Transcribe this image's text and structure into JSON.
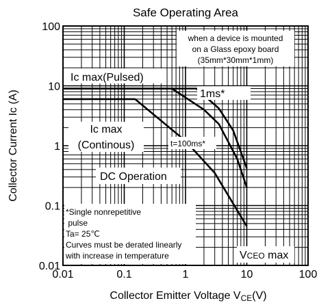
{
  "chart_data": {
    "type": "line",
    "title": "Safe Operating Area",
    "xlabel": "Collector Emitter Voltage V",
    "xlabel_sub": "CE",
    "xlabel_unit": "(V)",
    "ylabel": "Collector  Current  Ic (A)",
    "x_scale": "log",
    "y_scale": "log",
    "xlim": [
      0.01,
      100
    ],
    "ylim": [
      0.01,
      100
    ],
    "grid": true,
    "x_ticks": [
      {
        "v": 0.01,
        "label": "0.01"
      },
      {
        "v": 0.1,
        "label": "0.1"
      },
      {
        "v": 1,
        "label": "1"
      },
      {
        "v": 10,
        "label": "10"
      },
      {
        "v": 100,
        "label": "100"
      }
    ],
    "y_ticks": [
      {
        "v": 0.01,
        "label": "0.01"
      },
      {
        "v": 0.1,
        "label": "0.1"
      },
      {
        "v": 1,
        "label": "1"
      },
      {
        "v": 10,
        "label": "10"
      },
      {
        "v": 100,
        "label": "100"
      }
    ],
    "series": [
      {
        "points": [
          [
            0.01,
            9
          ],
          [
            1.5,
            9
          ],
          [
            3.5,
            4.2
          ],
          [
            6,
            1.8
          ],
          [
            10,
            0.42
          ]
        ]
      },
      {
        "points": [
          [
            0.01,
            9
          ],
          [
            0.6,
            9
          ],
          [
            2,
            4
          ],
          [
            3.5,
            2.3
          ],
          [
            7,
            0.6
          ],
          [
            10,
            0.2
          ]
        ]
      },
      {
        "points": [
          [
            0.01,
            6
          ],
          [
            0.15,
            6
          ],
          [
            1,
            1.2
          ],
          [
            3,
            0.35
          ],
          [
            10,
            0.045
          ]
        ]
      }
    ],
    "annotations": {
      "mount_note": [
        "when a device is mounted",
        "on a Glass epoxy board",
        "(35mm*30mm*1mm)"
      ],
      "ic_max_pulsed": "Ic max(Pulsed)",
      "one_ms": "1ms*",
      "ic_max_cont_1": "Ic max",
      "ic_max_cont_2": "(Continous)",
      "t100ms": "t=100ms*",
      "dc_operation": "DC Operation",
      "footnote": [
        "*Single nonrepetitive",
        " pulse",
        "Ta= 25℃",
        "Curves must be derated linearly",
        "with increase in temperature"
      ],
      "vceo_main": "V",
      "vceo_sub": "CEO",
      "vceo_tail": " max"
    }
  }
}
